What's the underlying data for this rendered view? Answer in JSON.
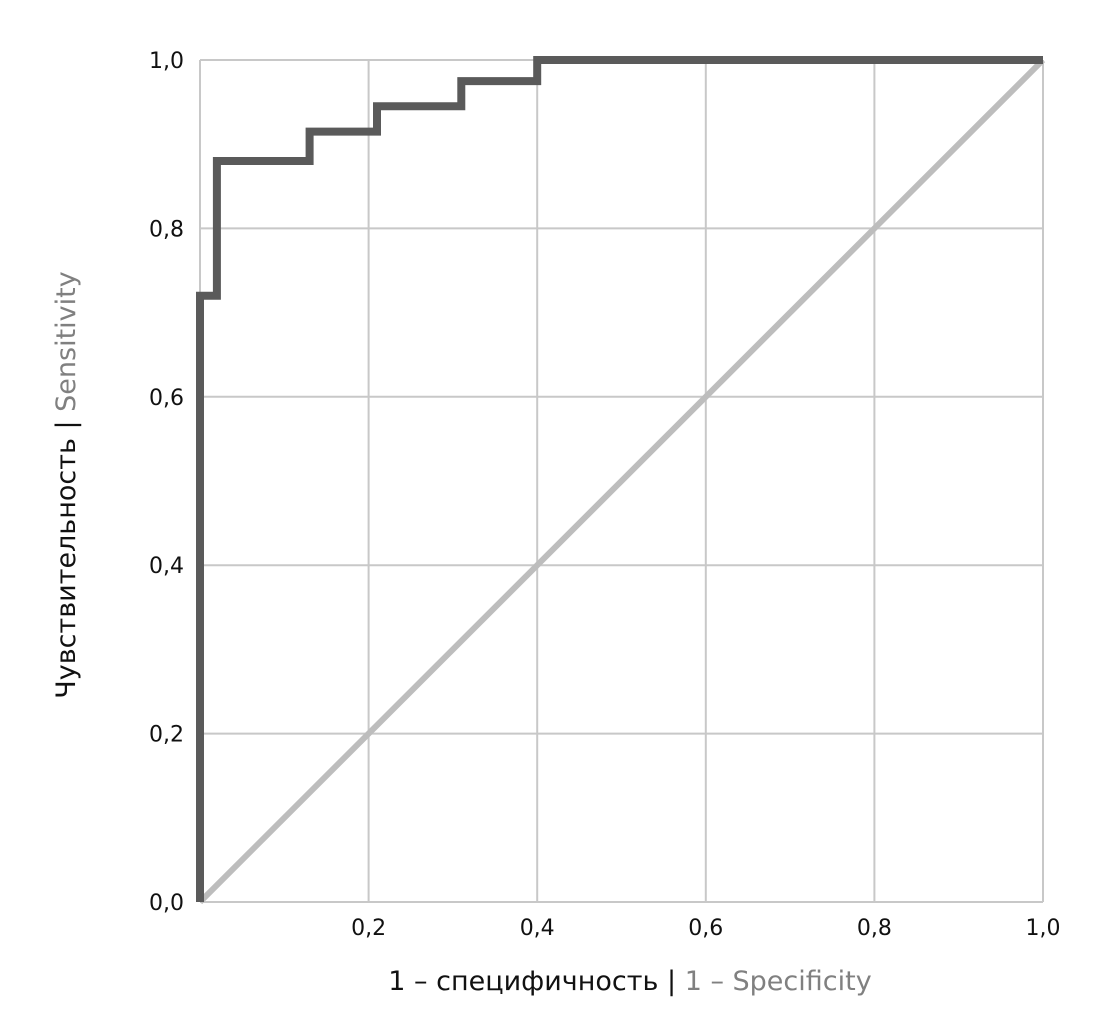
{
  "chart_data": {
    "type": "line",
    "x_ticks": [
      "0,2",
      "0,4",
      "0,6",
      "0,8",
      "1,0"
    ],
    "y_ticks": [
      "0,0",
      "0,2",
      "0,4",
      "0,6",
      "0,8",
      "1,0"
    ],
    "xlabel": {
      "primary": "1 – специфичность",
      "separator": " | ",
      "secondary": "1 – Specificity"
    },
    "ylabel": {
      "primary": "Чувствительность",
      "separator": " | ",
      "secondary": "Sensitivity"
    },
    "xlim": [
      0,
      1
    ],
    "ylim": [
      0,
      1
    ],
    "grid": true,
    "series": [
      {
        "x": [
          0,
          0,
          0.02,
          0.02,
          0.13,
          0.13,
          0.21,
          0.21,
          0.31,
          0.31,
          0.4,
          0.4,
          1.0
        ],
        "y": [
          0,
          0.72,
          0.72,
          0.88,
          0.88,
          0.915,
          0.915,
          0.945,
          0.945,
          0.975,
          0.975,
          1.0,
          1.0
        ],
        "color": "#5a5a5a"
      },
      {
        "x": [
          0,
          1
        ],
        "y": [
          0,
          1
        ],
        "color": "#bdbdbd"
      }
    ],
    "colors": {
      "grid": "#c8c8c8",
      "text_primary": "#111111",
      "text_secondary": "#808080"
    }
  }
}
